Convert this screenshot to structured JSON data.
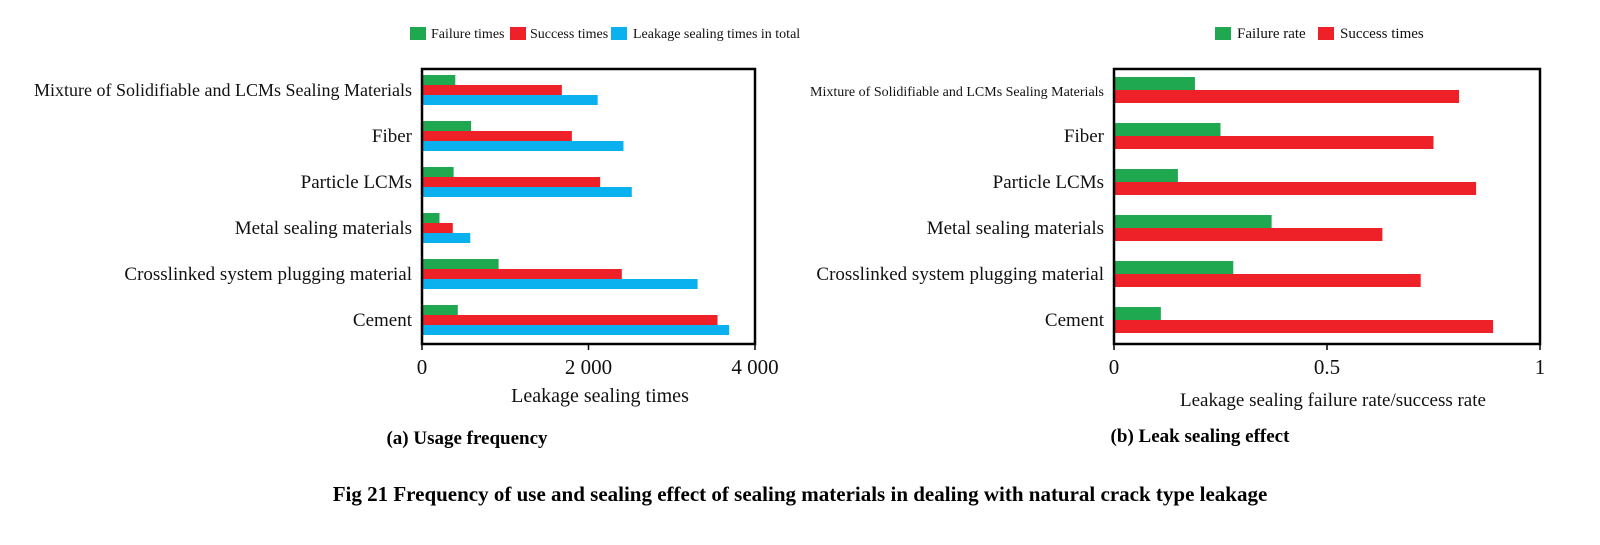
{
  "figure_caption": "Fig 21 Frequency of use and sealing effect of sealing materials in dealing with natural crack type leakage",
  "colors": {
    "failure": "#1fa84f",
    "success": "#ee2028",
    "total": "#0bb0ee"
  },
  "chart_data": [
    {
      "type": "bar",
      "orientation": "horizontal",
      "subtitle": "(a) Usage frequency",
      "xlabel": "Leakage sealing times",
      "ylabel": "",
      "xlim": [
        0,
        4000
      ],
      "xticks": [
        0,
        2000,
        4000
      ],
      "xtick_labels": [
        "0",
        "2 000",
        "4 000"
      ],
      "legend_position": "top",
      "grid": false,
      "categories": [
        "Mixture of Solidifiable and LCMs Sealing Materials",
        "Fiber",
        "Particle LCMs",
        "Metal sealing materials",
        "Crosslinked system plugging material",
        "Cement"
      ],
      "series": [
        {
          "name": "Failure times",
          "color": "#1fa84f",
          "values": [
            400,
            590,
            380,
            210,
            920,
            430
          ]
        },
        {
          "name": "Success times",
          "color": "#ee2028",
          "values": [
            1680,
            1800,
            2140,
            370,
            2400,
            3550
          ]
        },
        {
          "name": "Leakage sealing times in total",
          "color": "#0bb0ee",
          "values": [
            2110,
            2420,
            2520,
            580,
            3310,
            3690
          ]
        }
      ]
    },
    {
      "type": "bar",
      "orientation": "horizontal",
      "subtitle": "(b) Leak sealing effect",
      "xlabel": "Leakage sealing failure rate/success rate",
      "ylabel": "",
      "xlim": [
        0,
        1
      ],
      "xticks": [
        0,
        0.5,
        1
      ],
      "xtick_labels": [
        "0",
        "0.5",
        "1"
      ],
      "legend_position": "top",
      "grid": false,
      "categories": [
        "Mixture of Solidifiable and LCMs Sealing Materials",
        "Fiber",
        "Particle LCMs",
        "Metal sealing materials",
        "Crosslinked system plugging material",
        "Cement"
      ],
      "series": [
        {
          "name": "Failure rate",
          "color": "#1fa84f",
          "values": [
            0.19,
            0.25,
            0.15,
            0.37,
            0.28,
            0.11
          ]
        },
        {
          "name": "Success times",
          "color": "#ee2028",
          "values": [
            0.81,
            0.75,
            0.85,
            0.63,
            0.72,
            0.89
          ]
        }
      ]
    }
  ]
}
